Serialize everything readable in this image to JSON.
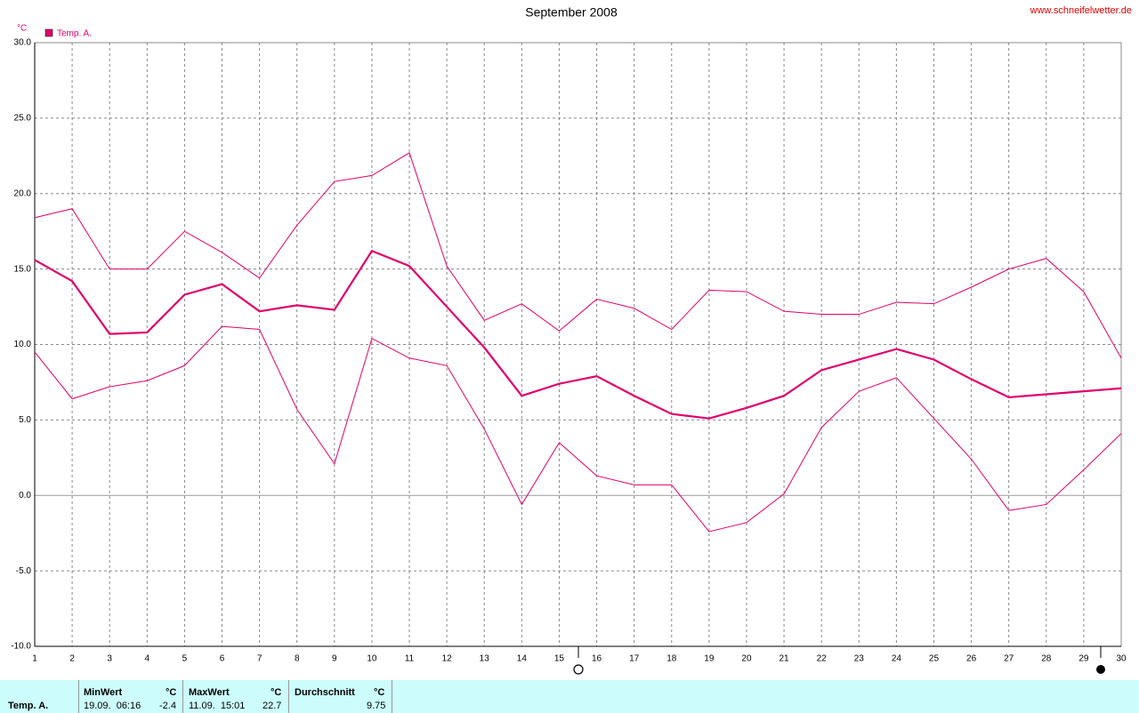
{
  "chart_data": {
    "type": "line",
    "title": "September 2008",
    "source": "www.schneifelwetter.de",
    "y_unit": "°C",
    "x": [
      1,
      2,
      3,
      4,
      5,
      6,
      7,
      8,
      9,
      10,
      11,
      12,
      13,
      14,
      15,
      16,
      17,
      18,
      19,
      20,
      21,
      22,
      23,
      24,
      25,
      26,
      27,
      28,
      29,
      30
    ],
    "series": [
      {
        "name": "Temp. A.",
        "color": "#e0006c",
        "values": [
          15.6,
          14.2,
          10.7,
          10.8,
          13.3,
          14.0,
          12.2,
          12.6,
          12.3,
          16.2,
          15.2,
          12.5,
          9.8,
          6.6,
          7.4,
          7.9,
          6.6,
          5.4,
          5.1,
          5.8,
          6.6,
          8.3,
          9.0,
          9.7,
          9.0,
          7.7,
          6.5,
          6.7,
          6.9,
          7.1
        ],
        "high": [
          18.4,
          19.0,
          15.0,
          15.0,
          17.5,
          16.1,
          14.4,
          17.9,
          20.8,
          21.2,
          22.7,
          15.2,
          11.6,
          12.7,
          10.9,
          13.0,
          12.4,
          11.0,
          13.6,
          13.5,
          12.2,
          12.0,
          12.0,
          12.8,
          12.7,
          13.8,
          15.0,
          15.7,
          13.5,
          9.1
        ],
        "low": [
          9.5,
          6.4,
          7.2,
          7.6,
          8.6,
          11.2,
          11.0,
          5.7,
          2.1,
          10.4,
          9.1,
          8.6,
          4.4,
          -0.6,
          3.5,
          1.3,
          0.7,
          0.7,
          -2.4,
          -1.8,
          0.1,
          4.5,
          6.9,
          7.8,
          5.1,
          2.4,
          -1.0,
          -0.6,
          1.7,
          4.1
        ]
      }
    ],
    "xlim": [
      1,
      30
    ],
    "xticks": [
      1,
      2,
      3,
      4,
      5,
      6,
      7,
      8,
      9,
      10,
      11,
      12,
      13,
      14,
      15,
      16,
      17,
      18,
      19,
      20,
      21,
      22,
      23,
      24,
      25,
      26,
      27,
      28,
      29,
      30
    ],
    "ylim": [
      -10,
      30
    ],
    "yticks": [
      {
        "value": -10,
        "label": "-10.0"
      },
      {
        "value": -5,
        "label": "-5.0"
      },
      {
        "value": 0,
        "label": "0.0"
      },
      {
        "value": 5,
        "label": "5.0"
      },
      {
        "value": 10,
        "label": "10.0"
      },
      {
        "value": 15,
        "label": "15.0"
      },
      {
        "value": 20,
        "label": "20.0"
      },
      {
        "value": 25,
        "label": "25.0"
      },
      {
        "value": 30,
        "label": "30.0"
      }
    ],
    "grid": true
  },
  "summary": {
    "series": "Temp. A.",
    "min_header": "MinWert",
    "min_unit": "°C",
    "min_time": "19.09.  06:16",
    "min_value": "-2.4",
    "max_header": "MaxWert",
    "max_unit": "°C",
    "max_time": "11.09.  15:01",
    "max_value": "22.7",
    "avg_header": "Durchschnitt",
    "avg_unit": "°C",
    "avg_value": "9.75"
  }
}
